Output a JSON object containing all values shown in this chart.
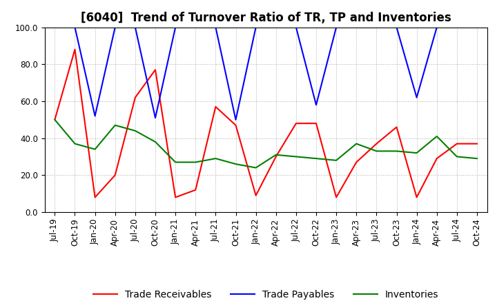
{
  "title": "[6040]  Trend of Turnover Ratio of TR, TP and Inventories",
  "ylim": [
    0.0,
    100.0
  ],
  "yticks": [
    0.0,
    20.0,
    40.0,
    60.0,
    80.0,
    100.0
  ],
  "x_labels": [
    "Jul-19",
    "Oct-19",
    "Jan-20",
    "Apr-20",
    "Jul-20",
    "Oct-20",
    "Jan-21",
    "Apr-21",
    "Jul-21",
    "Oct-21",
    "Jan-22",
    "Apr-22",
    "Jul-22",
    "Oct-22",
    "Jan-23",
    "Apr-23",
    "Jul-23",
    "Oct-23",
    "Jan-24",
    "Apr-24",
    "Jul-24",
    "Oct-24"
  ],
  "trade_receivables": [
    50,
    88,
    8,
    20,
    62,
    77,
    8,
    12,
    57,
    47,
    9,
    30,
    48,
    48,
    8,
    27,
    37,
    46,
    8,
    29,
    37,
    37
  ],
  "trade_payables": [
    100,
    100,
    52,
    100,
    100,
    51,
    100,
    100,
    100,
    50,
    100,
    100,
    100,
    58,
    100,
    100,
    100,
    100,
    62,
    100,
    100,
    100
  ],
  "inventories": [
    50,
    37,
    34,
    47,
    44,
    38,
    27,
    27,
    29,
    26,
    24,
    31,
    30,
    29,
    28,
    37,
    33,
    33,
    32,
    41,
    30,
    29
  ],
  "tr_color": "#ff0000",
  "tp_color": "#0000ff",
  "inv_color": "#008000",
  "tr_label": "Trade Receivables",
  "tp_label": "Trade Payables",
  "inv_label": "Inventories",
  "bg_color": "#ffffff",
  "grid_color": "#aaaaaa",
  "title_fontsize": 12,
  "legend_fontsize": 10,
  "tick_fontsize": 8.5
}
